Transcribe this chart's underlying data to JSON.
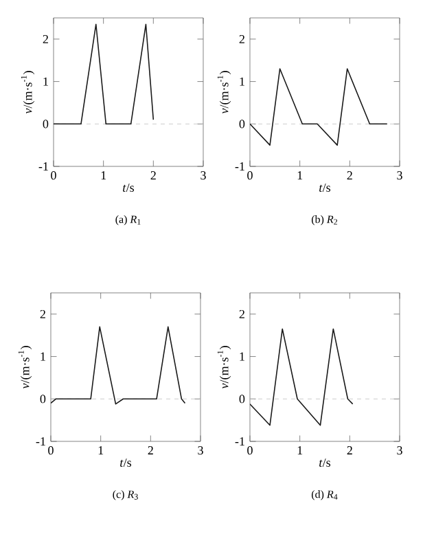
{
  "chart_data": [
    {
      "type": "line",
      "title": "(a) *R*$_{1}$",
      "xlabel": "*t*/s",
      "ylabel": "*v*/(m·s$^{-1}$)",
      "xlim": [
        0,
        3
      ],
      "ylim": [
        -1,
        2.5
      ],
      "xticks": [
        0,
        1,
        2,
        3
      ],
      "yticks": [
        -1,
        0,
        1,
        2
      ],
      "color": "#1a1a1a",
      "line_style": "solid",
      "x": [
        0,
        0.55,
        0.85,
        1.05,
        1.55,
        1.85,
        2.0
      ],
      "values": [
        0,
        0,
        2.35,
        0,
        0,
        2.35,
        0.1
      ],
      "ref_lines": [
        {
          "axis": "y",
          "value": 0,
          "color": "#c0c0c0",
          "line_style": "dashed"
        }
      ]
    },
    {
      "type": "line",
      "title": "(b) *R*$_{2}$",
      "xlabel": "*t*/s",
      "ylabel": "*v*/(m·s$^{-1}$)",
      "xlim": [
        0,
        3
      ],
      "ylim": [
        -1,
        2.5
      ],
      "xticks": [
        0,
        1,
        2,
        3
      ],
      "yticks": [
        -1,
        0,
        1,
        2
      ],
      "color": "#1a1a1a",
      "line_style": "solid",
      "x": [
        0,
        0.4,
        0.6,
        1.05,
        1.35,
        1.75,
        1.95,
        2.4,
        2.75
      ],
      "values": [
        0,
        -0.5,
        1.3,
        0,
        0,
        -0.5,
        1.3,
        0,
        0
      ],
      "ref_lines": [
        {
          "axis": "y",
          "value": 0,
          "color": "#c0c0c0",
          "line_style": "dashed"
        }
      ]
    },
    {
      "type": "line",
      "title": "(c) *R*$_{3}$",
      "xlabel": "*t*/s",
      "ylabel": "*v*/(m·s$^{-1}$)",
      "xlim": [
        0,
        3
      ],
      "ylim": [
        -1,
        2.5
      ],
      "xticks": [
        0,
        1,
        2,
        3
      ],
      "yticks": [
        -1,
        0,
        1,
        2
      ],
      "color": "#1a1a1a",
      "line_style": "solid",
      "x": [
        0,
        0.1,
        0.8,
        0.98,
        1.3,
        1.45,
        2.12,
        2.35,
        2.62,
        2.69
      ],
      "values": [
        -0.1,
        0,
        0,
        1.7,
        -0.12,
        0,
        0,
        1.7,
        0,
        -0.1
      ],
      "ref_lines": [
        {
          "axis": "y",
          "value": 0,
          "color": "#c0c0c0",
          "line_style": "dashed"
        }
      ]
    },
    {
      "type": "line",
      "title": "(d) *R*$_{4}$",
      "xlabel": "*t*/s",
      "ylabel": "*v*/(m·s$^{-1}$)",
      "xlim": [
        0,
        3
      ],
      "ylim": [
        -1,
        2.5
      ],
      "xticks": [
        0,
        1,
        2,
        3
      ],
      "yticks": [
        -1,
        0,
        1,
        2
      ],
      "color": "#1a1a1a",
      "line_style": "solid",
      "x": [
        0,
        0.4,
        0.65,
        0.95,
        1.41,
        1.67,
        1.96,
        2.06
      ],
      "values": [
        -0.12,
        -0.62,
        1.65,
        0,
        -0.62,
        1.65,
        0,
        -0.12
      ],
      "ref_lines": [
        {
          "axis": "y",
          "value": 0,
          "color": "#c0c0c0",
          "line_style": "dashed"
        }
      ]
    }
  ]
}
